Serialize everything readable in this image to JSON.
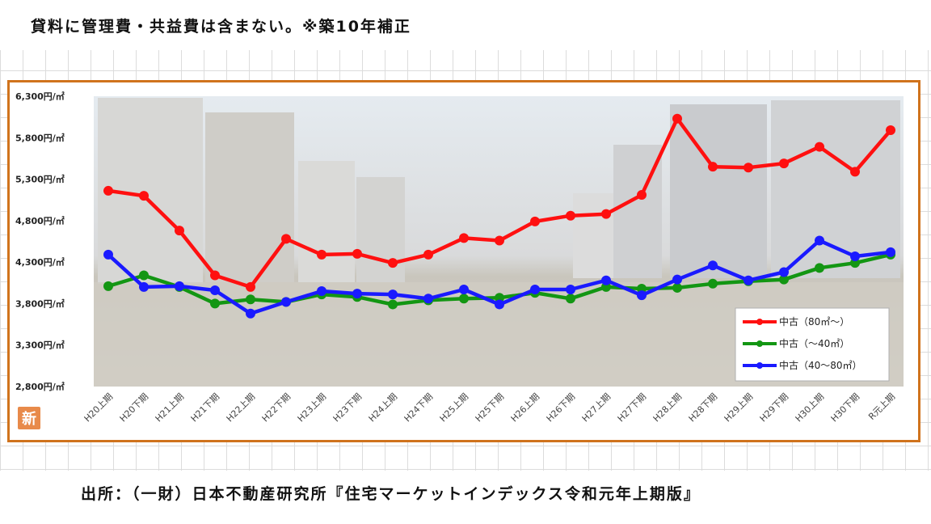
{
  "note": "貸料に管理費・共益費は含まない。※築10年補正",
  "source": "出所：（一財）日本不動産研究所『住宅マーケットインデックス令和元年上期版』",
  "logo_glyph": "新",
  "chart_data": {
    "type": "line",
    "categories": [
      "H20上期",
      "H20下期",
      "H21上期",
      "H21下期",
      "H22上期",
      "H22下期",
      "H23上期",
      "H23下期",
      "H24上期",
      "H24下期",
      "H25上期",
      "H25下期",
      "H26上期",
      "H26下期",
      "H27上期",
      "H27下期",
      "H28上期",
      "H28下期",
      "H29上期",
      "H29下期",
      "H30上期",
      "H30下期",
      "R元上期"
    ],
    "y_tick_labels": [
      "6,300円/㎡",
      "5,800円/㎡",
      "5,300円/㎡",
      "4,800円/㎡",
      "4,300円/㎡",
      "3,800円/㎡",
      "3,300円/㎡",
      "2,800円/㎡"
    ],
    "y_ticks": [
      6300,
      5800,
      5300,
      4800,
      4300,
      3800,
      3300,
      2800
    ],
    "ylim": [
      2800,
      6300
    ],
    "legend_position": "bottom-right",
    "series": [
      {
        "name": "中古（80㎡～）",
        "color": "#ff1010",
        "values": [
          5160,
          5100,
          4680,
          4140,
          4000,
          4580,
          4390,
          4400,
          4290,
          4390,
          4590,
          4560,
          4790,
          4860,
          4880,
          5110,
          6030,
          5450,
          5440,
          5490,
          5690,
          5390,
          5890
        ]
      },
      {
        "name": "中古（～40㎡）",
        "color": "#139613",
        "values": [
          4010,
          4140,
          4000,
          3800,
          3850,
          3820,
          3910,
          3880,
          3790,
          3840,
          3860,
          3870,
          3930,
          3860,
          4000,
          3980,
          3990,
          4040,
          4070,
          4090,
          4230,
          4290,
          4390
        ]
      },
      {
        "name": "中古（40～80㎡）",
        "color": "#1a1aff",
        "values": [
          4390,
          4000,
          4010,
          3960,
          3680,
          3820,
          3950,
          3920,
          3910,
          3860,
          3970,
          3790,
          3970,
          3970,
          4080,
          3900,
          4090,
          4260,
          4080,
          4180,
          4560,
          4370,
          4420
        ]
      }
    ]
  }
}
